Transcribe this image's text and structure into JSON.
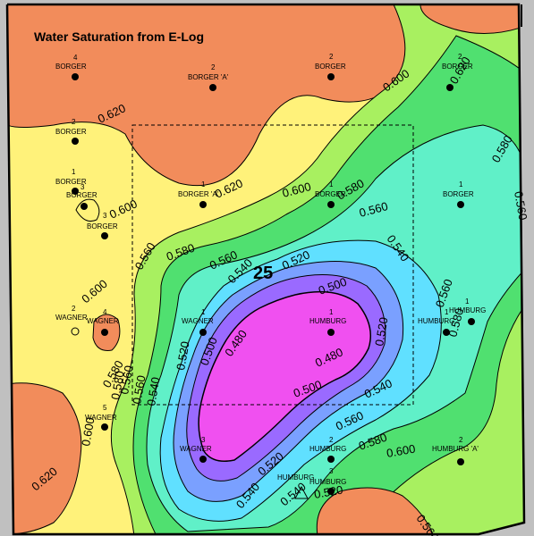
{
  "title": "Water Saturation from E-Log",
  "section_number": "25",
  "colors": {
    "background": "#c0c0c0",
    "orange": "#f28c5b",
    "yellow": "#fff27a",
    "light_green": "#a8f060",
    "green": "#50e070",
    "aqua": "#60f0c8",
    "cyan": "#60e0ff",
    "blue": "#7aa0ff",
    "violet": "#9a6aff",
    "magenta": "#f050f0"
  },
  "contour_labels": [
    {
      "id": "c1",
      "text": "0.620"
    },
    {
      "id": "c2",
      "text": "0.600"
    },
    {
      "id": "c3",
      "text": "0.600"
    },
    {
      "id": "c4",
      "text": "0.580"
    },
    {
      "id": "c5",
      "text": "0.620"
    },
    {
      "id": "c6",
      "text": "0.600"
    },
    {
      "id": "c7",
      "text": "0.580"
    },
    {
      "id": "c8",
      "text": "0.560"
    },
    {
      "id": "c9",
      "text": "0.560"
    },
    {
      "id": "c10",
      "text": "0.580"
    },
    {
      "id": "c11",
      "text": "0.560"
    },
    {
      "id": "c12",
      "text": "0.540"
    },
    {
      "id": "c13",
      "text": "0.520"
    },
    {
      "id": "c14",
      "text": "0.540"
    },
    {
      "id": "c15",
      "text": "0.500"
    },
    {
      "id": "c16",
      "text": "0.480"
    },
    {
      "id": "c17",
      "text": "0.500"
    },
    {
      "id": "c18",
      "text": "0.520"
    },
    {
      "id": "c19",
      "text": "0.480"
    },
    {
      "id": "c20",
      "text": "0.500"
    },
    {
      "id": "c21",
      "text": "0.520"
    },
    {
      "id": "c22",
      "text": "0.540"
    },
    {
      "id": "c23",
      "text": "0.560"
    },
    {
      "id": "c24",
      "text": "0.580"
    },
    {
      "id": "c25",
      "text": "0.600"
    },
    {
      "id": "c26",
      "text": "0.560"
    },
    {
      "id": "c27",
      "text": "0.580"
    },
    {
      "id": "c28",
      "text": "0.560"
    },
    {
      "id": "c29",
      "text": "0.540"
    },
    {
      "id": "c30",
      "text": "0.520"
    },
    {
      "id": "c31",
      "text": "0.540"
    },
    {
      "id": "c32",
      "text": "0.560"
    },
    {
      "id": "c33",
      "text": "0.580"
    },
    {
      "id": "c34",
      "text": "0.600"
    },
    {
      "id": "c35",
      "text": "0.600"
    },
    {
      "id": "c36",
      "text": "0.620"
    },
    {
      "id": "c37",
      "text": "0.520"
    },
    {
      "id": "c38",
      "text": "0.540"
    },
    {
      "id": "c39",
      "text": "0.560"
    },
    {
      "id": "c40",
      "text": "0.580"
    },
    {
      "id": "c41",
      "text": "0.560"
    },
    {
      "id": "c42",
      "text": "0.620"
    }
  ],
  "wells": [
    {
      "id": "w1",
      "num": "4",
      "name": "BORGER"
    },
    {
      "id": "w2",
      "num": "2",
      "name": "BORGER 'A'"
    },
    {
      "id": "w3",
      "num": "2",
      "name": "BORGER"
    },
    {
      "id": "w4",
      "num": "2",
      "name": "BORGER"
    },
    {
      "id": "w5",
      "num": "2",
      "name": "BORGER"
    },
    {
      "id": "w6",
      "num": "1",
      "name": "BORGER"
    },
    {
      "id": "w7",
      "num": "3",
      "name": "BORGER"
    },
    {
      "id": "w8",
      "num": "3",
      "name": "BORGER"
    },
    {
      "id": "w9",
      "num": "1",
      "name": "BORGER 'A'"
    },
    {
      "id": "w10",
      "num": "1",
      "name": "BORGER"
    },
    {
      "id": "w11",
      "num": "1",
      "name": "BORGER"
    },
    {
      "id": "w12",
      "num": "2",
      "name": "WAGNER"
    },
    {
      "id": "w13",
      "num": "4",
      "name": "WAGNER"
    },
    {
      "id": "w14",
      "num": "1",
      "name": "WAGNER"
    },
    {
      "id": "w15",
      "num": "1",
      "name": "HUMBURG"
    },
    {
      "id": "w16",
      "num": "1",
      "name": "HUMBURG"
    },
    {
      "id": "w17",
      "num": "1",
      "name": "HUMBURG"
    },
    {
      "id": "w18",
      "num": "5",
      "name": "WAGNER"
    },
    {
      "id": "w19",
      "num": "3",
      "name": "WAGNER"
    },
    {
      "id": "w20",
      "num": "2",
      "name": "HUMBURG"
    },
    {
      "id": "w21",
      "num": "2",
      "name": "HUMBURG 'A'"
    },
    {
      "id": "w22",
      "num": "",
      "name": "HUMBURG"
    },
    {
      "id": "w23",
      "num": "3",
      "name": "HUMBURG"
    }
  ]
}
